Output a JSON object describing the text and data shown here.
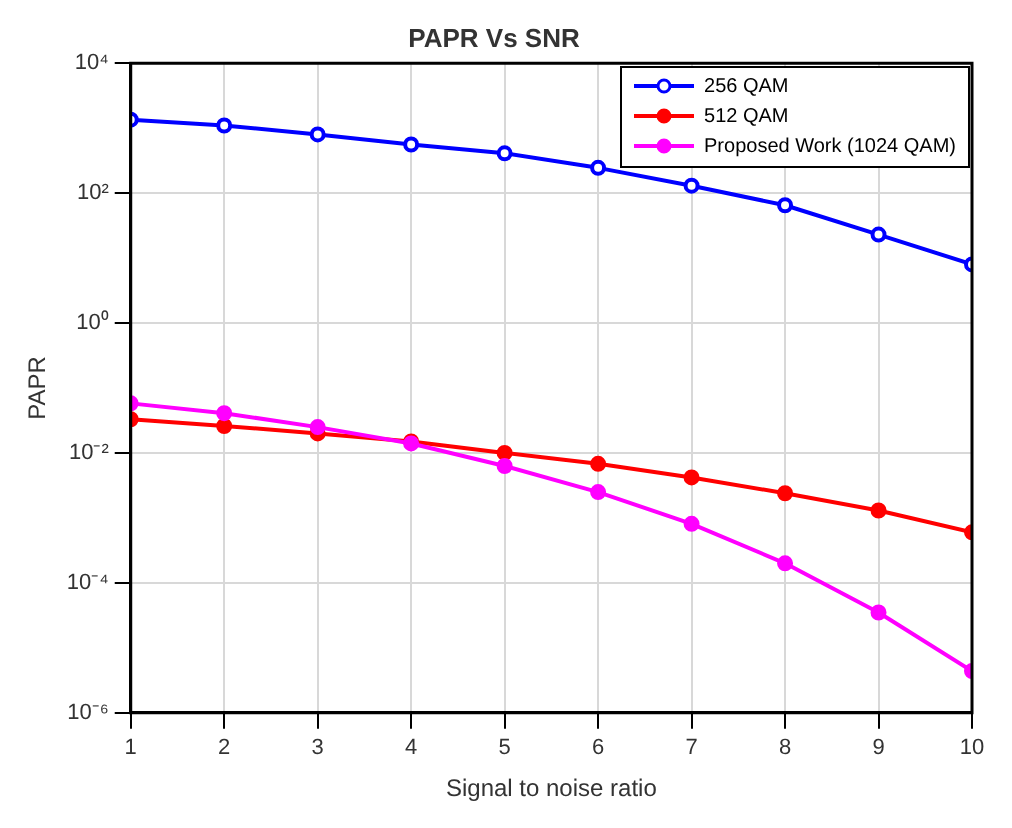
{
  "chart_data": {
    "type": "line",
    "title": "PAPR Vs SNR",
    "xlabel": "Signal to noise ratio",
    "ylabel": "PAPR",
    "x": [
      1,
      2,
      3,
      4,
      5,
      6,
      7,
      8,
      9,
      10
    ],
    "series": [
      {
        "name": "256 QAM",
        "color": "#0000ff",
        "values": [
          1350,
          1100,
          800,
          560,
          410,
          245,
          130,
          65,
          23,
          8
        ]
      },
      {
        "name": "512 QAM",
        "color": "#ff0000",
        "values": [
          0.033,
          0.026,
          0.02,
          0.015,
          0.01,
          0.0068,
          0.0042,
          0.0024,
          0.0013,
          0.0006
        ]
      },
      {
        "name": "Proposed Work  (1024 QAM)",
        "color": "#ff00ff",
        "values": [
          0.058,
          0.041,
          0.025,
          0.014,
          0.0063,
          0.0025,
          0.00081,
          0.0002,
          3.5e-05,
          4.4e-06
        ]
      }
    ],
    "log": "y",
    "xlim": [
      1,
      10
    ],
    "xticks": [
      1,
      2,
      3,
      4,
      5,
      6,
      7,
      8,
      9,
      10
    ],
    "ylim": [
      1e-06,
      10000
    ],
    "yticks": [
      {
        "value": 1e-06,
        "label": "10⁻⁶"
      },
      {
        "value": 0.0001,
        "label": "10⁻⁴"
      },
      {
        "value": 0.01,
        "label": "10⁻²"
      },
      {
        "value": 1,
        "label": "10⁰"
      },
      {
        "value": 100,
        "label": "10²"
      },
      {
        "value": 10000,
        "label": "10⁴"
      }
    ],
    "grid": true,
    "legend": "top right",
    "marker": "circle",
    "line_style": "solid"
  }
}
